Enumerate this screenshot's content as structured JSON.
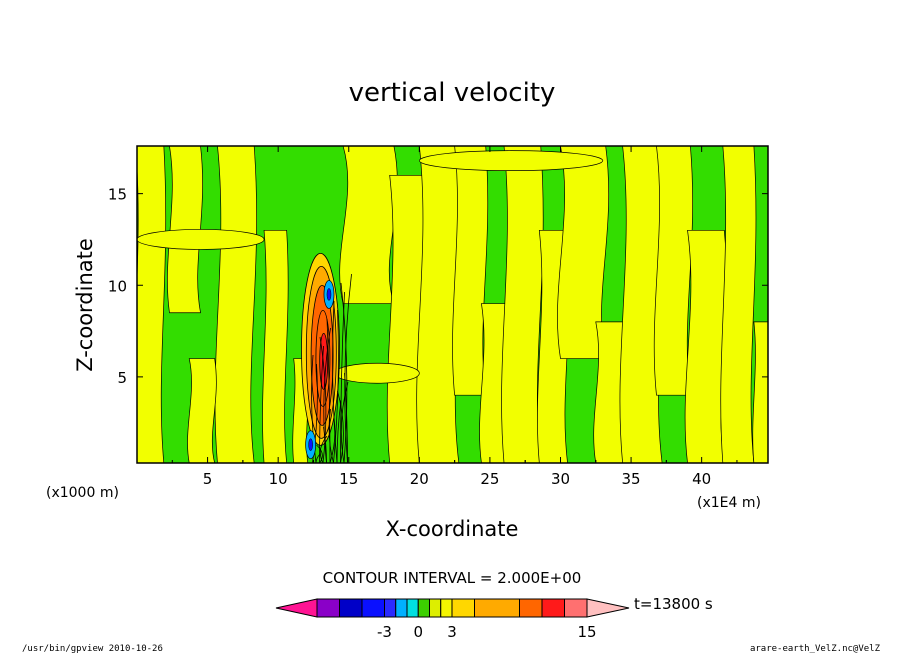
{
  "chart_data": {
    "type": "heatmap",
    "subtype": "filled-contour",
    "title": "vertical velocity",
    "xlabel": "X-coordinate",
    "ylabel": "Z-coordinate",
    "x_unit": "(x1E4 m)",
    "y_unit": "(x1000 m)",
    "x_ticks": [
      "5",
      "10",
      "15",
      "20",
      "25",
      "30",
      "35",
      "40"
    ],
    "y_ticks": [
      "5",
      "10",
      "15"
    ],
    "xlim": [
      0,
      44.7
    ],
    "ylim": [
      0.3,
      17.6
    ],
    "contour_interval": "CONTOUR INTERVAL = 2.000E+00",
    "time_label": "t=13800 s",
    "colorbar": {
      "levels": [
        -9,
        -7,
        -5,
        -3,
        -2,
        -1,
        0,
        1,
        2,
        3,
        5,
        9,
        11,
        13,
        15
      ],
      "labels": [
        "-3",
        "0",
        "3",
        "15"
      ],
      "colors": [
        "#ff1493",
        "#8a00c8",
        "#0000c8",
        "#0a10ff",
        "#2a2aff",
        "#00b0ff",
        "#00e0e0",
        "#3cd000",
        "#ddee00",
        "#f5f500",
        "#ffd700",
        "#ffaa00",
        "#ff6600",
        "#ff1a1a",
        "#ff7070",
        "#ffc0c0"
      ]
    },
    "background_fill": "#33dd00",
    "positive_fill": "#f2ff00",
    "features": [
      {
        "kind": "updraft-core",
        "x": 13.0,
        "z": 6.5,
        "value": 15
      },
      {
        "kind": "downdraft",
        "x": 12.3,
        "z": 1.3,
        "value": -3
      },
      {
        "kind": "downdraft",
        "x": 13.6,
        "z": 9.5,
        "value": -3
      }
    ]
  },
  "footer": {
    "left": "/usr/bin/gpview   2010-10-26",
    "right": "arare-earth_VelZ.nc@VelZ"
  }
}
